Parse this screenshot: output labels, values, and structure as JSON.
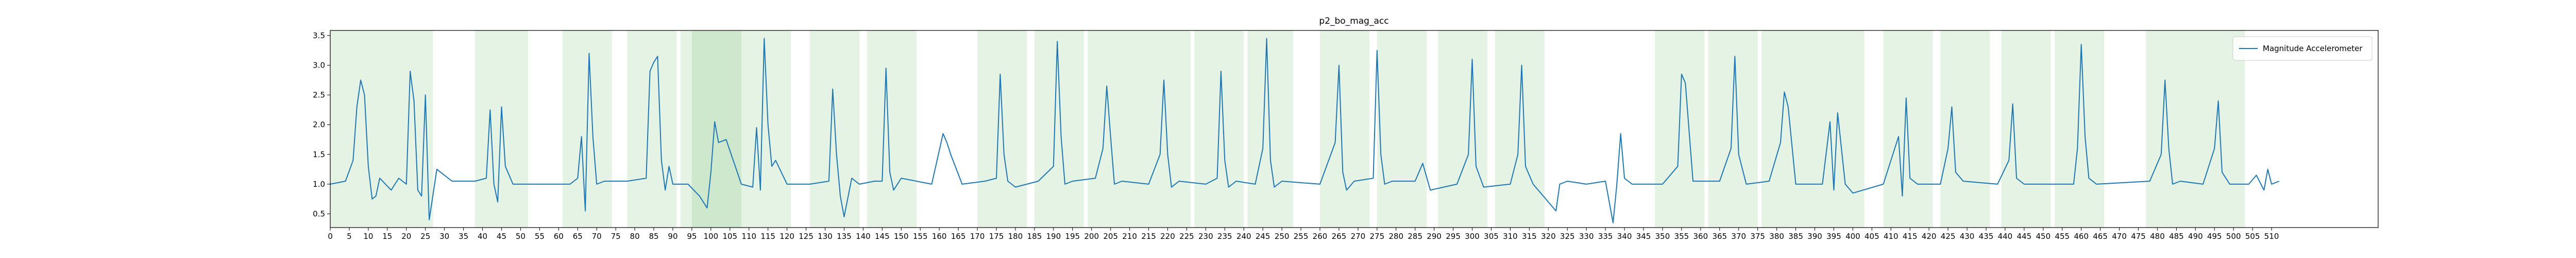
{
  "chart_data": {
    "type": "line",
    "title": "p2_bo_mag_acc",
    "legend": "upper right",
    "xlim": [
      0,
      538
    ],
    "ylim": [
      0.27,
      3.585
    ],
    "xticks": [
      0,
      5,
      10,
      15,
      20,
      25,
      30,
      35,
      40,
      45,
      50,
      55,
      60,
      65,
      70,
      75,
      80,
      85,
      90,
      95,
      100,
      105,
      110,
      115,
      120,
      125,
      130,
      135,
      140,
      145,
      150,
      155,
      160,
      165,
      170,
      175,
      180,
      185,
      190,
      195,
      200,
      205,
      210,
      215,
      220,
      225,
      230,
      235,
      240,
      245,
      250,
      255,
      260,
      265,
      270,
      275,
      280,
      285,
      290,
      295,
      300,
      305,
      310,
      315,
      320,
      325,
      330,
      335,
      340,
      345,
      350,
      355,
      360,
      365,
      370,
      375,
      380,
      385,
      390,
      395,
      400,
      405,
      410,
      415,
      420,
      425,
      430,
      435,
      440,
      445,
      450,
      455,
      460,
      465,
      470,
      475,
      480,
      485,
      490,
      495,
      500,
      505,
      510
    ],
    "yticks": [
      0.5,
      {
        "value": 1,
        "label": "1.0"
      },
      1.5,
      {
        "value": 2,
        "label": "2.0"
      },
      2.5,
      {
        "value": 3,
        "label": "3.0"
      },
      3.5
    ],
    "span_color": "#2ca02c",
    "spans": [
      [
        0,
        14
      ],
      [
        14,
        27
      ],
      [
        38,
        52
      ],
      [
        61,
        74
      ],
      [
        78,
        91
      ],
      [
        92,
        108
      ],
      [
        95,
        108
      ],
      [
        108,
        121
      ],
      [
        126,
        139
      ],
      [
        141,
        154
      ],
      [
        170,
        183
      ],
      [
        185,
        198
      ],
      [
        199,
        212
      ],
      [
        212,
        226
      ],
      [
        227,
        240
      ],
      [
        241,
        253
      ],
      [
        260,
        273
      ],
      [
        275,
        288
      ],
      [
        291,
        304
      ],
      [
        306,
        319
      ],
      [
        348,
        361
      ],
      [
        362,
        375
      ],
      [
        376,
        389
      ],
      [
        389,
        403
      ],
      [
        408,
        421
      ],
      [
        423,
        436
      ],
      [
        439,
        452
      ],
      [
        453,
        466
      ],
      [
        477,
        490
      ],
      [
        490,
        503
      ]
    ],
    "x": [
      0,
      4,
      6,
      7,
      8,
      9,
      10,
      11,
      12,
      13,
      16,
      18,
      20,
      21,
      22,
      23,
      24,
      25,
      26,
      28,
      32,
      38,
      41,
      42,
      43,
      44,
      45,
      46,
      48,
      55,
      63,
      65,
      66,
      67,
      68,
      69,
      70,
      72,
      78,
      83,
      84,
      85,
      86,
      87,
      88,
      89,
      90,
      94,
      97,
      99,
      100,
      101,
      102,
      104,
      108,
      111,
      112,
      113,
      114,
      115,
      116,
      117,
      120,
      126,
      131,
      132,
      133,
      134,
      135,
      137,
      139,
      143,
      145,
      146,
      147,
      148,
      150,
      158,
      161,
      162,
      163,
      166,
      172,
      175,
      176,
      177,
      178,
      180,
      186,
      190,
      191,
      192,
      193,
      195,
      201,
      203,
      204,
      205,
      206,
      208,
      215,
      218,
      219,
      220,
      221,
      223,
      230,
      233,
      234,
      235,
      236,
      238,
      243,
      245,
      246,
      247,
      248,
      250,
      260,
      264,
      265,
      266,
      267,
      269,
      274,
      275,
      276,
      277,
      279,
      285,
      287,
      289,
      296,
      299,
      300,
      301,
      303,
      310,
      312,
      313,
      314,
      316,
      322,
      323,
      325,
      330,
      335,
      337,
      338,
      339,
      340,
      342,
      350,
      354,
      355,
      356,
      358,
      365,
      368,
      369,
      370,
      372,
      378,
      381,
      382,
      383,
      385,
      392,
      394,
      395,
      396,
      397,
      398,
      400,
      408,
      412,
      413,
      414,
      415,
      417,
      423,
      425,
      426,
      427,
      429,
      438,
      441,
      442,
      443,
      445,
      452,
      458,
      459,
      460,
      461,
      462,
      464,
      478,
      481,
      482,
      483,
      484,
      486,
      492,
      495,
      496,
      497,
      499,
      504,
      506,
      508,
      509,
      510,
      512
    ],
    "series": [
      {
        "name": "Magnitude Accelerometer",
        "color": "#1f77b4",
        "values": [
          1.0,
          1.05,
          1.4,
          2.3,
          2.75,
          2.5,
          1.3,
          0.75,
          0.8,
          1.1,
          0.9,
          1.1,
          1.0,
          2.9,
          2.4,
          0.9,
          0.8,
          2.5,
          0.4,
          1.25,
          1.05,
          1.05,
          1.1,
          2.25,
          1.0,
          0.7,
          2.3,
          1.3,
          1.0,
          1.0,
          1.0,
          1.1,
          1.8,
          0.55,
          3.2,
          1.8,
          1.0,
          1.05,
          1.05,
          1.1,
          2.9,
          3.05,
          3.15,
          1.4,
          0.9,
          1.3,
          1.0,
          1.0,
          0.8,
          0.6,
          1.2,
          2.05,
          1.7,
          1.75,
          1.0,
          0.95,
          1.95,
          0.9,
          3.45,
          2.0,
          1.3,
          1.4,
          1.0,
          1.0,
          1.05,
          2.6,
          1.5,
          0.8,
          0.45,
          1.1,
          1.0,
          1.05,
          1.05,
          2.95,
          1.2,
          0.9,
          1.1,
          1.0,
          1.85,
          1.7,
          1.5,
          1.0,
          1.05,
          1.1,
          2.85,
          1.5,
          1.05,
          0.95,
          1.05,
          1.3,
          3.4,
          1.8,
          1.0,
          1.05,
          1.1,
          1.6,
          2.65,
          1.8,
          1.0,
          1.05,
          1.0,
          1.5,
          2.75,
          1.5,
          0.95,
          1.05,
          1.0,
          1.1,
          2.9,
          1.4,
          0.95,
          1.05,
          1.0,
          1.6,
          3.45,
          1.4,
          0.95,
          1.05,
          1.0,
          1.7,
          3.0,
          1.2,
          0.9,
          1.05,
          1.1,
          3.25,
          1.5,
          1.0,
          1.05,
          1.05,
          1.35,
          0.9,
          1.0,
          1.5,
          3.1,
          1.3,
          0.95,
          1.0,
          1.5,
          3.0,
          1.3,
          1.0,
          0.55,
          1.0,
          1.05,
          1.0,
          1.05,
          0.35,
          1.0,
          1.85,
          1.1,
          1.0,
          1.0,
          1.3,
          2.85,
          2.7,
          1.05,
          1.05,
          1.6,
          3.15,
          1.5,
          1.0,
          1.05,
          1.7,
          2.55,
          2.3,
          1.0,
          1.0,
          2.05,
          0.9,
          2.2,
          1.6,
          1.0,
          0.85,
          1.0,
          1.8,
          0.8,
          2.45,
          1.1,
          1.0,
          1.0,
          1.6,
          2.3,
          1.2,
          1.05,
          1.0,
          1.4,
          2.35,
          1.1,
          1.0,
          1.0,
          1.0,
          1.6,
          3.35,
          1.8,
          1.1,
          1.0,
          1.05,
          1.5,
          2.75,
          1.6,
          1.0,
          1.05,
          1.0,
          1.6,
          2.4,
          1.2,
          1.0,
          1.0,
          1.15,
          0.9,
          1.25,
          1.0,
          1.05
        ]
      }
    ]
  }
}
